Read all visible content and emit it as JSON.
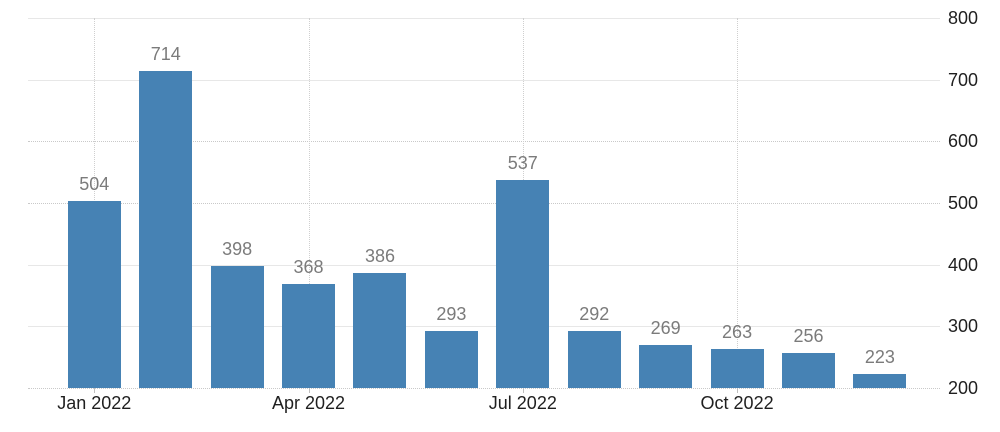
{
  "chart_data": {
    "type": "bar",
    "title": "",
    "xlabel": "",
    "ylabel": "",
    "categories": [
      "Jan 2022",
      "Feb 2022",
      "Mar 2022",
      "Apr 2022",
      "May 2022",
      "Jun 2022",
      "Jul 2022",
      "Aug 2022",
      "Sep 2022",
      "Oct 2022",
      "Nov 2022",
      "Dec 2022"
    ],
    "values": [
      504,
      714,
      398,
      368,
      386,
      293,
      537,
      292,
      269,
      263,
      256,
      223
    ],
    "value_labels": [
      "504",
      "714",
      "398",
      "368",
      "386",
      "293",
      "537",
      "292",
      "269",
      "263",
      "256",
      "223"
    ],
    "x_tick_labels": [
      "Jan 2022",
      "Apr 2022",
      "Jul 2022",
      "Oct 2022"
    ],
    "x_tick_category_indexes": [
      0,
      3,
      6,
      9
    ],
    "y_tick_labels": [
      "200",
      "300",
      "400",
      "500",
      "600",
      "700",
      "800"
    ],
    "y_ticks": [
      200,
      300,
      400,
      500,
      600,
      700,
      800
    ],
    "ylim": [
      200,
      800
    ],
    "y_axis_side": "right",
    "grid": true,
    "solid_grid_values": [
      800,
      700,
      400,
      300
    ],
    "dotted_grid_values": [
      600,
      500,
      200
    ],
    "legend": "none",
    "colors": {
      "bar": "#4682B4",
      "value_label": "#7b7b7b",
      "tick_label": "#1f1f1f",
      "grid_solid": "#e7e7e7",
      "grid_dotted": "#c9c9c9",
      "background": "#ffffff"
    }
  }
}
